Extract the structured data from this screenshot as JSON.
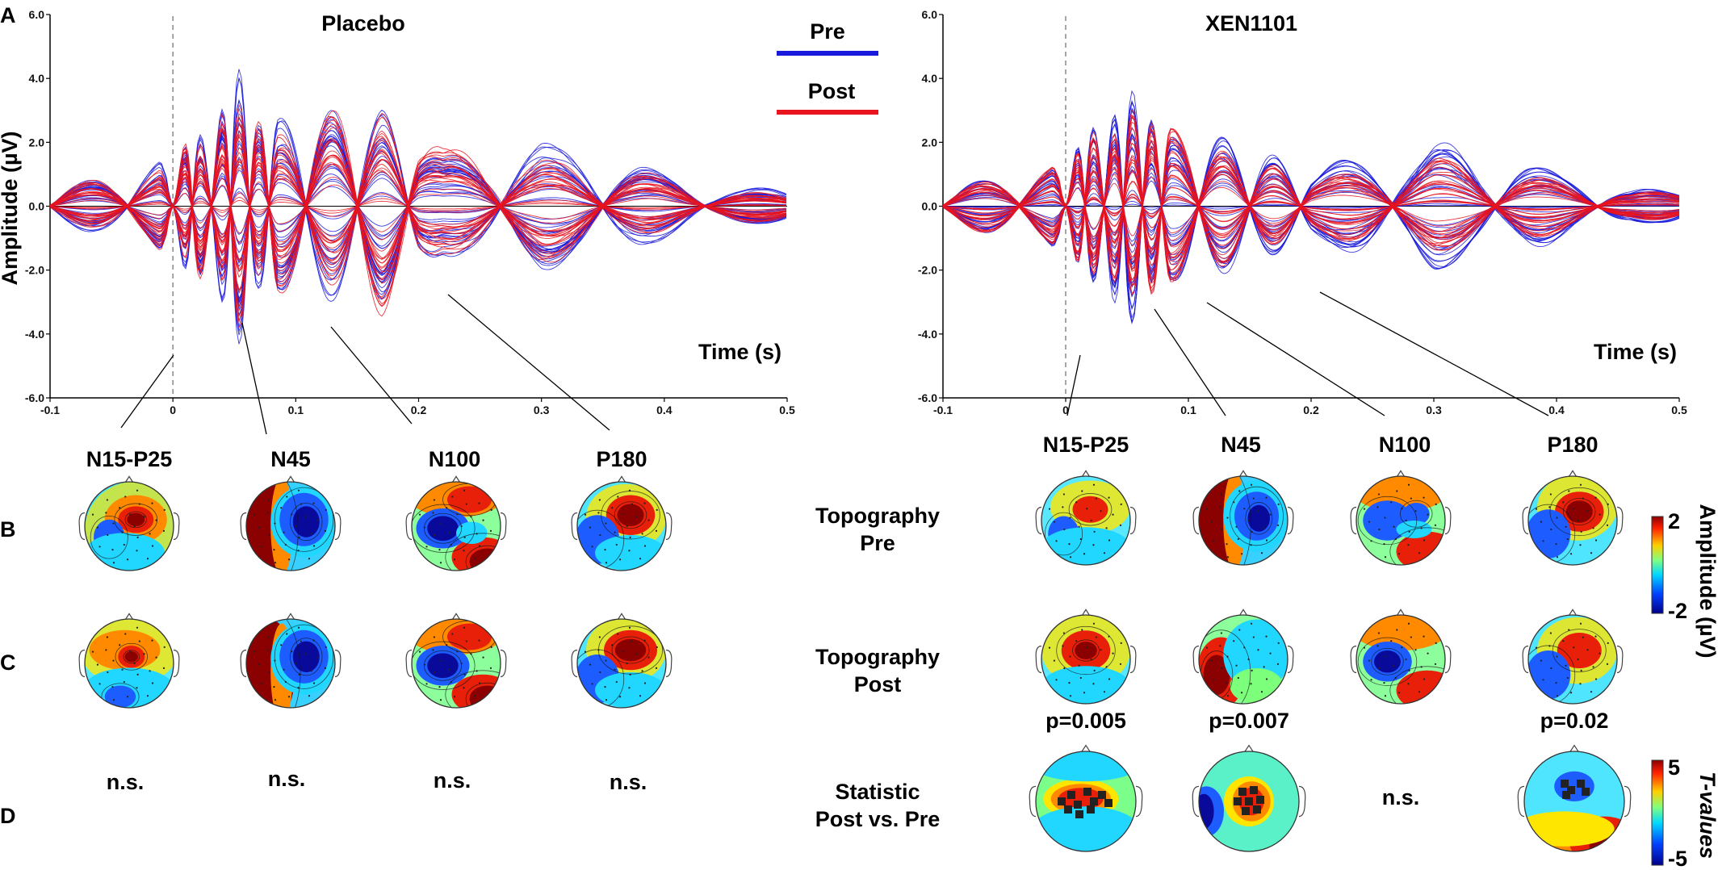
{
  "figure": {
    "panel_letters": [
      "A",
      "B",
      "C",
      "D"
    ],
    "legend": [
      {
        "label": "Pre",
        "color": "#1a1adc"
      },
      {
        "label": "Post",
        "color": "#e8141e"
      }
    ],
    "colors": {
      "pre": "#1a1adc",
      "post": "#e8141e",
      "axis": "#000000"
    },
    "row_labels": {
      "pre": [
        "Topography",
        "Pre"
      ],
      "post": [
        "Topography",
        "Post"
      ],
      "stat": [
        "Statistic",
        "Post vs. Pre"
      ]
    },
    "components": [
      "N15-P25",
      "N45",
      "N100",
      "P180"
    ],
    "colorbar_amplitude": {
      "label": "Amplitude (µV)",
      "max": "2",
      "min": "-2"
    },
    "colorbar_t": {
      "label": "T-values",
      "max": "5",
      "min": "-5"
    }
  },
  "chart_data": [
    {
      "type": "line",
      "title": "Placebo",
      "xlabel": "Time (s)",
      "ylabel": "Amplitude (µV)",
      "xlim": [
        -0.1,
        0.5
      ],
      "ylim": [
        -6.0,
        6.0
      ],
      "xticks": [
        "-0.1",
        "0",
        "0.1",
        "0.2",
        "0.3",
        "0.4",
        "0.5"
      ],
      "yticks": [
        "6.0",
        "4.0",
        "2.0",
        "0.0",
        "-2.0",
        "-4.0",
        "-6.0"
      ],
      "stimulus_onset": 0,
      "components": [
        {
          "name": "N15-P25",
          "time": 0.0
        },
        {
          "name": "N45",
          "time": 0.055
        },
        {
          "name": "N100",
          "time": 0.12
        },
        {
          "name": "P180",
          "time": 0.22
        }
      ],
      "series": [
        {
          "name": "Pre",
          "envelope_uv": [
            [
              -0.1,
              0.6
            ],
            [
              -0.05,
              0.9
            ],
            [
              -0.01,
              1.4
            ],
            [
              0.0,
              0.3
            ],
            [
              0.015,
              3.0
            ],
            [
              0.03,
              1.5
            ],
            [
              0.05,
              4.7
            ],
            [
              0.07,
              2.5
            ],
            [
              0.11,
              2.9
            ],
            [
              0.17,
              3.0
            ],
            [
              0.22,
              1.5
            ],
            [
              0.3,
              2.0
            ],
            [
              0.38,
              1.3
            ],
            [
              0.44,
              0.5
            ],
            [
              0.5,
              0.6
            ]
          ]
        },
        {
          "name": "Post",
          "envelope_uv": [
            [
              -0.1,
              0.6
            ],
            [
              -0.05,
              0.9
            ],
            [
              -0.01,
              1.4
            ],
            [
              0.0,
              0.3
            ],
            [
              0.015,
              3.1
            ],
            [
              0.03,
              1.5
            ],
            [
              0.05,
              4.2
            ],
            [
              0.07,
              2.6
            ],
            [
              0.11,
              2.8
            ],
            [
              0.17,
              3.4
            ],
            [
              0.22,
              1.8
            ],
            [
              0.3,
              1.8
            ],
            [
              0.38,
              1.1
            ],
            [
              0.44,
              0.5
            ],
            [
              0.5,
              0.5
            ]
          ]
        }
      ],
      "stats": [
        "n.s.",
        "n.s.",
        "n.s.",
        "n.s."
      ]
    },
    {
      "type": "line",
      "title": "XEN1101",
      "xlabel": "Time (s)",
      "ylabel": "",
      "xlim": [
        -0.1,
        0.5
      ],
      "ylim": [
        -6.0,
        6.0
      ],
      "xticks": [
        "-0.1",
        "0",
        "0.1",
        "0.2",
        "0.3",
        "0.4",
        "0.5"
      ],
      "yticks": [
        "6.0",
        "4.0",
        "2.0",
        "0.0",
        "-2.0",
        "-4.0",
        "-6.0"
      ],
      "stimulus_onset": 0,
      "components": [
        {
          "name": "N15-P25",
          "time": 0.01
        },
        {
          "name": "N45",
          "time": 0.07
        },
        {
          "name": "N100",
          "time": 0.115
        },
        {
          "name": "P180",
          "time": 0.2
        }
      ],
      "series": [
        {
          "name": "Pre",
          "envelope_uv": [
            [
              -0.1,
              0.6
            ],
            [
              -0.05,
              0.9
            ],
            [
              -0.01,
              1.3
            ],
            [
              0.0,
              0.3
            ],
            [
              0.015,
              3.0
            ],
            [
              0.03,
              2.0
            ],
            [
              0.05,
              3.9
            ],
            [
              0.075,
              2.3
            ],
            [
              0.11,
              2.4
            ],
            [
              0.15,
              1.8
            ],
            [
              0.2,
              1.2
            ],
            [
              0.3,
              2.0
            ],
            [
              0.38,
              1.3
            ],
            [
              0.46,
              0.5
            ],
            [
              0.5,
              0.6
            ]
          ]
        },
        {
          "name": "Post",
          "envelope_uv": [
            [
              -0.1,
              0.6
            ],
            [
              -0.05,
              0.9
            ],
            [
              -0.01,
              1.3
            ],
            [
              0.0,
              0.3
            ],
            [
              0.015,
              2.8
            ],
            [
              0.03,
              1.8
            ],
            [
              0.05,
              3.0
            ],
            [
              0.075,
              2.7
            ],
            [
              0.11,
              2.1
            ],
            [
              0.15,
              1.5
            ],
            [
              0.2,
              0.9
            ],
            [
              0.3,
              1.5
            ],
            [
              0.38,
              1.0
            ],
            [
              0.46,
              0.4
            ],
            [
              0.5,
              0.5
            ]
          ]
        }
      ],
      "stats": [
        "p=0.005",
        "p=0.007",
        "n.s.",
        "p=0.02"
      ]
    }
  ]
}
